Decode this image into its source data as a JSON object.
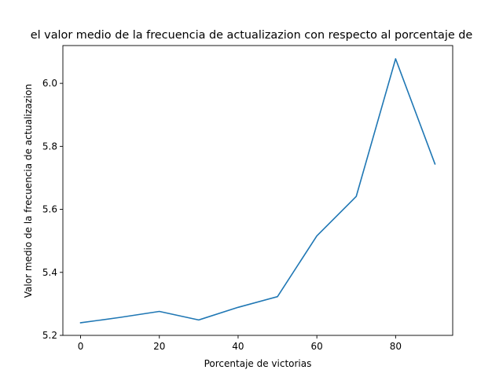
{
  "chart_data": {
    "type": "line",
    "title": "el valor medio de la frecuencia de actualizazion con respecto al porcentaje de",
    "xlabel": "Porcentaje de victorias",
    "ylabel": "Valor medio de la frecuencia de actualizazion",
    "xlim": [
      -4.5,
      94.5
    ],
    "ylim": [
      5.2,
      6.12
    ],
    "xticks": [
      0,
      20,
      40,
      60,
      80
    ],
    "yticks": [
      5.2,
      5.4,
      5.6,
      5.8,
      6.0
    ],
    "xtick_labels": [
      "0",
      "20",
      "40",
      "60",
      "80"
    ],
    "ytick_labels": [
      "5.2",
      "5.4",
      "5.6",
      "5.8",
      "6.0"
    ],
    "grid": false,
    "series": [
      {
        "color": "#1f77b4",
        "x": [
          0,
          10,
          20,
          30,
          40,
          50,
          60,
          70,
          80,
          90
        ],
        "y": [
          5.24,
          5.257,
          5.276,
          5.249,
          5.289,
          5.323,
          5.516,
          5.641,
          6.078,
          5.744
        ]
      }
    ]
  }
}
